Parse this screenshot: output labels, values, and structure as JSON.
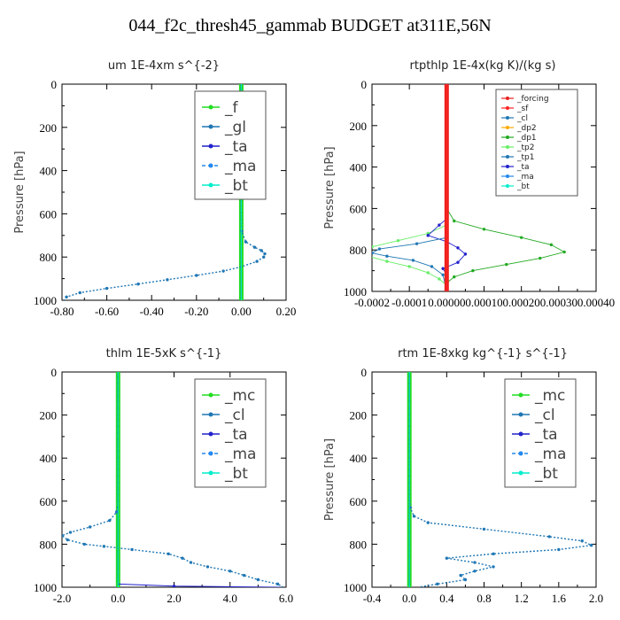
{
  "title": "044_f2c_thresh45_gammab  BUDGET at311E,56N",
  "colors": {
    "forcing": "#e8221e",
    "sf": "#ff2020",
    "cl": "#1f77b4",
    "mc": "#22dd22",
    "f": "#22dd22",
    "gl": "#1f77b4",
    "ta": "#2222cc",
    "ma": "#2288ee",
    "bt": "#00eecc",
    "dp2": "#ffaa00",
    "dp1": "#22aa22",
    "tp2": "#66ee66",
    "tp1": "#1f77b4"
  },
  "chart_data": [
    {
      "type": "line",
      "id": "um",
      "title": "um   1E-4xm s^{-2}",
      "ylabel": "Pressure [hPa]",
      "xlabel": "",
      "xlim": [
        -0.8,
        0.2
      ],
      "ylim": [
        1000,
        0
      ],
      "xticks": [
        "-0.80",
        "-0.60",
        "-0.40",
        "-0.20",
        "0.00",
        "0.20"
      ],
      "yticks": [
        "0",
        "200",
        "400",
        "600",
        "800",
        "1000"
      ],
      "legend": {
        "position": "top-right",
        "style": "big",
        "entries": [
          "_f",
          "_gl",
          "_ta",
          "_ma",
          "_bt"
        ]
      },
      "series": [
        {
          "name": "_f",
          "color": "#22dd22",
          "width": 5,
          "points": [
            [
              0,
              0
            ],
            [
              0,
              1000
            ]
          ]
        },
        {
          "name": "_gl",
          "color": "#1f77b4",
          "width": 1.4,
          "dash": "2,2",
          "points": [
            [
              0,
              0
            ],
            [
              0,
              600
            ],
            [
              0.002,
              680
            ],
            [
              0.02,
              730
            ],
            [
              0.06,
              755
            ],
            [
              0.09,
              770
            ],
            [
              0.105,
              785
            ],
            [
              0.1,
              800
            ],
            [
              0.07,
              820
            ],
            [
              0,
              845
            ],
            [
              -0.08,
              865
            ],
            [
              -0.2,
              885
            ],
            [
              -0.33,
              905
            ],
            [
              -0.46,
              925
            ],
            [
              -0.6,
              945
            ],
            [
              -0.72,
              965
            ],
            [
              -0.78,
              985
            ],
            [
              -0.79,
              1000
            ]
          ]
        },
        {
          "name": "_ta",
          "color": "#2222cc",
          "width": 1,
          "points": [
            [
              0,
              0
            ],
            [
              0,
              1000
            ]
          ]
        },
        {
          "name": "_ma",
          "color": "#2288ee",
          "width": 1,
          "dash": "4,3",
          "points": [
            [
              0,
              0
            ],
            [
              0,
              1000
            ]
          ]
        },
        {
          "name": "_bt",
          "color": "#00eecc",
          "width": 1,
          "points": [
            [
              0,
              0
            ],
            [
              0,
              1000
            ]
          ]
        }
      ]
    },
    {
      "type": "line",
      "id": "rtpthlp",
      "title": "rtpthlp   1E-4x(kg K)/(kg s)",
      "ylabel": "Pressure [hPa]",
      "xlabel": "",
      "xlim": [
        -0.0002,
        0.0004
      ],
      "ylim": [
        1000,
        0
      ],
      "xticks": [
        "-0.0002",
        "-0.0001",
        "0.00000",
        "0.00010",
        "0.00020",
        "0.00030",
        "0.00040"
      ],
      "yticks": [
        "0",
        "200",
        "400",
        "600",
        "800",
        "1000"
      ],
      "legend": {
        "position": "top-right",
        "style": "small",
        "entries": [
          "_forcing",
          "_sf",
          "_cl",
          "_dp2",
          "_dp1",
          "_tp2",
          "_tp1",
          "_ta",
          "_ma",
          "_bt"
        ]
      },
      "series": [
        {
          "name": "_dp1",
          "color": "#22aa22",
          "width": 0.9,
          "points": [
            [
              0,
              0
            ],
            [
              0,
              600
            ],
            [
              2e-05,
              660
            ],
            [
              0.0001,
              700
            ],
            [
              0.0002,
              740
            ],
            [
              0.00028,
              775
            ],
            [
              0.000315,
              810
            ],
            [
              0.00025,
              840
            ],
            [
              0.00016,
              870
            ],
            [
              7e-05,
              900
            ],
            [
              2e-05,
              930
            ],
            [
              0,
              960
            ],
            [
              0,
              1000
            ]
          ]
        },
        {
          "name": "_tp2",
          "color": "#66ee66",
          "width": 0.9,
          "points": [
            [
              0,
              0
            ],
            [
              0,
              680
            ],
            [
              -5e-05,
              720
            ],
            [
              -0.00013,
              755
            ],
            [
              -0.0002,
              785
            ],
            [
              -0.00022,
              810
            ],
            [
              -0.00021,
              830
            ],
            [
              -0.00016,
              855
            ],
            [
              -0.0001,
              880
            ],
            [
              -5e-05,
              910
            ],
            [
              -2e-05,
              940
            ],
            [
              0,
              970
            ],
            [
              0,
              1000
            ]
          ]
        },
        {
          "name": "_ta",
          "color": "#2222cc",
          "width": 0.9,
          "points": [
            [
              0,
              0
            ],
            [
              0,
              650
            ],
            [
              -2e-05,
              680
            ],
            [
              -5e-05,
              730
            ],
            [
              0,
              760
            ],
            [
              3e-05,
              790
            ],
            [
              5e-05,
              820
            ],
            [
              3e-05,
              860
            ],
            [
              -1e-05,
              890
            ],
            [
              0,
              920
            ],
            [
              0,
              1000
            ]
          ]
        },
        {
          "name": "_tp1",
          "color": "#1f77b4",
          "width": 0.9,
          "points": [
            [
              0,
              0
            ],
            [
              0,
              740
            ],
            [
              -8e-05,
              770
            ],
            [
              -0.00018,
              795
            ],
            [
              -0.0002,
              815
            ],
            [
              -0.00016,
              830
            ],
            [
              -9e-05,
              850
            ],
            [
              -4e-05,
              880
            ],
            [
              -1e-05,
              920
            ],
            [
              0,
              1000
            ]
          ]
        },
        {
          "name": "_dp2",
          "color": "#ffaa00",
          "width": 2,
          "points": [
            [
              0,
              0
            ],
            [
              0,
              1000
            ]
          ]
        },
        {
          "name": "_forcing",
          "color": "#e8221e",
          "width": 5,
          "points": [
            [
              0,
              0
            ],
            [
              0,
              1000
            ]
          ]
        },
        {
          "name": "_sf",
          "color": "#ff2020",
          "width": 1.5,
          "points": [
            [
              0,
              0
            ],
            [
              0,
              1000
            ]
          ]
        }
      ]
    },
    {
      "type": "line",
      "id": "thlm",
      "title": "thlm   1E-5xK s^{-1}",
      "ylabel": "",
      "xlabel": "",
      "xlim": [
        -2.0,
        6.0
      ],
      "ylim": [
        1000,
        0
      ],
      "xticks": [
        "-2.0",
        "0.0",
        "2.0",
        "4.0",
        "6.0"
      ],
      "yticks": [
        "0",
        "200",
        "400",
        "600",
        "800",
        "1000"
      ],
      "legend": {
        "position": "top-right",
        "style": "big",
        "entries": [
          "_mc",
          "_cl",
          "_ta",
          "_ma",
          "_bt"
        ]
      },
      "series": [
        {
          "name": "_mc",
          "color": "#22dd22",
          "width": 5,
          "points": [
            [
              0,
              0
            ],
            [
              0,
              1000
            ]
          ]
        },
        {
          "name": "_cl",
          "color": "#1f77b4",
          "width": 1.4,
          "dash": "2,2",
          "points": [
            [
              0,
              0
            ],
            [
              0,
              620
            ],
            [
              -0.05,
              650
            ],
            [
              -0.3,
              690
            ],
            [
              -1.0,
              720
            ],
            [
              -1.7,
              745
            ],
            [
              -2.0,
              760
            ],
            [
              -1.8,
              780
            ],
            [
              -1.2,
              800
            ],
            [
              -0.5,
              810
            ],
            [
              0.5,
              825
            ],
            [
              1.8,
              845
            ],
            [
              2.3,
              865
            ],
            [
              2.6,
              885
            ],
            [
              3.2,
              905
            ],
            [
              4.0,
              925
            ],
            [
              4.5,
              945
            ],
            [
              5.0,
              965
            ],
            [
              5.7,
              985
            ],
            [
              5.9,
              1000
            ]
          ]
        },
        {
          "name": "_ta",
          "color": "#2222cc",
          "width": 1,
          "points": [
            [
              0,
              0
            ],
            [
              0,
              985
            ],
            [
              2,
              995
            ],
            [
              5.8,
              1000
            ]
          ]
        },
        {
          "name": "_ma",
          "color": "#2288ee",
          "width": 1,
          "dash": "4,3",
          "points": [
            [
              0,
              0
            ],
            [
              0,
              1000
            ]
          ]
        },
        {
          "name": "_bt",
          "color": "#00eecc",
          "width": 1,
          "points": [
            [
              0,
              0
            ],
            [
              0,
              1000
            ]
          ]
        }
      ]
    },
    {
      "type": "line",
      "id": "rtm",
      "title": "rtm   1E-8xkg kg^{-1} s^{-1}",
      "ylabel": "Pressure [hPa]",
      "xlabel": "",
      "xlim": [
        -0.4,
        2.0
      ],
      "ylim": [
        1000,
        0
      ],
      "xticks": [
        "-0.4",
        "0.0",
        "0.4",
        "0.8",
        "1.2",
        "1.6",
        "2.0"
      ],
      "yticks": [
        "0",
        "200",
        "400",
        "600",
        "800",
        "1000"
      ],
      "legend": {
        "position": "top-right",
        "style": "big",
        "entries": [
          "_mc",
          "_cl",
          "_ta",
          "_ma",
          "_bt"
        ]
      },
      "series": [
        {
          "name": "_mc",
          "color": "#22dd22",
          "width": 5,
          "points": [
            [
              0,
              0
            ],
            [
              0,
              1000
            ]
          ]
        },
        {
          "name": "_cl",
          "color": "#1f77b4",
          "width": 1.4,
          "dash": "2,2",
          "points": [
            [
              0,
              0
            ],
            [
              0,
              580
            ],
            [
              0.01,
              630
            ],
            [
              0.05,
              670
            ],
            [
              0.2,
              700
            ],
            [
              0.8,
              730
            ],
            [
              1.5,
              765
            ],
            [
              1.85,
              785
            ],
            [
              1.95,
              805
            ],
            [
              1.6,
              825
            ],
            [
              0.9,
              845
            ],
            [
              0.4,
              865
            ],
            [
              0.7,
              885
            ],
            [
              0.9,
              905
            ],
            [
              0.7,
              925
            ],
            [
              0.55,
              945
            ],
            [
              0.6,
              965
            ],
            [
              0.3,
              985
            ],
            [
              0.1,
              1000
            ]
          ]
        },
        {
          "name": "_ta",
          "color": "#2222cc",
          "width": 1,
          "points": [
            [
              0,
              0
            ],
            [
              0,
              1000
            ]
          ]
        },
        {
          "name": "_ma",
          "color": "#2288ee",
          "width": 1,
          "dash": "4,3",
          "points": [
            [
              0,
              0
            ],
            [
              0,
              1000
            ]
          ]
        },
        {
          "name": "_bt",
          "color": "#00eecc",
          "width": 1,
          "points": [
            [
              0,
              0
            ],
            [
              0,
              1000
            ]
          ]
        }
      ]
    }
  ]
}
